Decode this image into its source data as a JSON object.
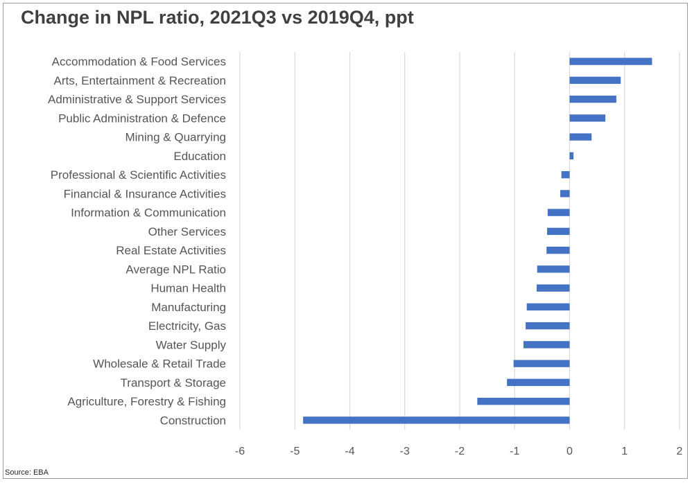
{
  "source": "Source: EBA",
  "colors": {
    "bar": "#4472c4",
    "grid": "#d9d9d9",
    "text": "#555555",
    "title": "#404040"
  },
  "chart_data": {
    "type": "bar",
    "orientation": "horizontal",
    "title": "Change in NPL ratio, 2021Q3 vs 2019Q4, ppt",
    "xlabel": "",
    "ylabel": "",
    "xlim": [
      -6,
      2
    ],
    "xticks": [
      -6,
      -5,
      -4,
      -3,
      -2,
      -1,
      0,
      1,
      2
    ],
    "grid": true,
    "categories": [
      "Accommodation & Food Services",
      "Arts, Entertainment & Recreation",
      "Administrative & Support Services",
      "Public Administration & Defence",
      "Mining & Quarrying",
      "Education",
      "Professional & Scientific Activities",
      "Financial & Insurance Activities",
      "Information & Communication",
      "Other Services",
      "Real Estate Activities",
      "Average NPL Ratio",
      "Human Health",
      "Manufacturing",
      "Electricity, Gas",
      "Water Supply",
      "Wholesale & Retail Trade",
      "Transport & Storage",
      "Agriculture, Forestry & Fishing",
      "Construction"
    ],
    "values": [
      1.5,
      0.93,
      0.85,
      0.65,
      0.4,
      0.07,
      -0.15,
      -0.17,
      -0.4,
      -0.41,
      -0.42,
      -0.59,
      -0.6,
      -0.78,
      -0.8,
      -0.84,
      -1.02,
      -1.14,
      -1.68,
      -4.85
    ]
  }
}
